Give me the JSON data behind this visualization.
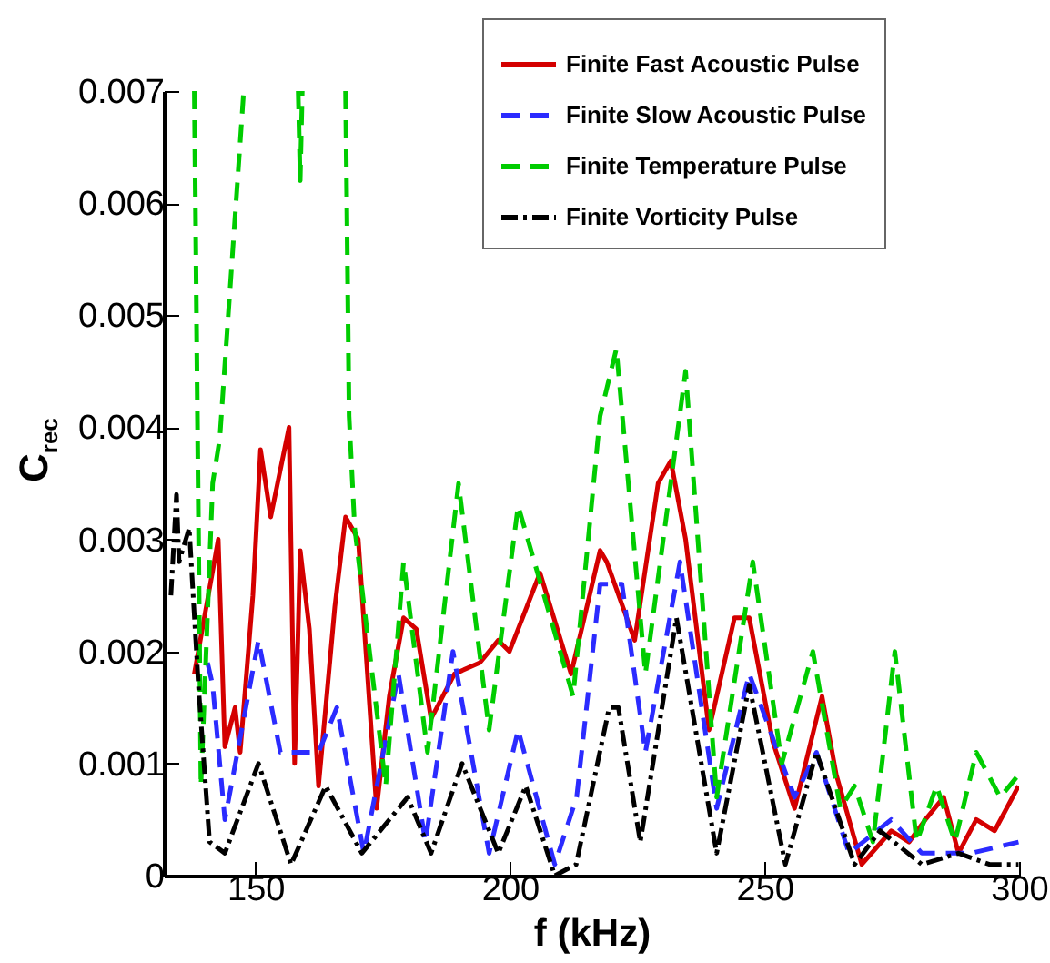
{
  "chart_data": {
    "type": "line",
    "xlabel": "f (kHz)",
    "ylabel": "C$_{rec}$",
    "xlim": [
      132,
      300
    ],
    "xticks": [
      150,
      200,
      250,
      300
    ],
    "ylim": [
      0,
      0.007
    ],
    "yticks": [
      0,
      0.001,
      0.002,
      0.003,
      0.004,
      0.005,
      0.006,
      0.007
    ],
    "grid": false,
    "legend": "top right",
    "series": [
      {
        "name": "Finite Fast Acoustic Pulse",
        "color": "#d40000",
        "line_style": "solid",
        "x": [
          138,
          142.7,
          144,
          146,
          147,
          149.5,
          151,
          153,
          156.6,
          157.7,
          158.8,
          160.6,
          162.4,
          165.6,
          167.7,
          170.2,
          173.8,
          176.3,
          179.1,
          181.6,
          184.5,
          189.1,
          194.1,
          197.7,
          199.9,
          205.9,
          212,
          217.7,
          219,
          224.5,
          229.1,
          231.6,
          234.5,
          239.1,
          244.1,
          247,
          251.6,
          255.9,
          261.3,
          264.1,
          269.1,
          274.9,
          278.4,
          281.6,
          285.2,
          288.1,
          291.6,
          295.2,
          299.9
        ],
        "values": [
          0.0018,
          0.003,
          0.00115,
          0.0015,
          0.0011,
          0.0025,
          0.0038,
          0.0032,
          0.004,
          0.001,
          0.0029,
          0.0022,
          0.0008,
          0.0024,
          0.0032,
          0.003,
          0.0006,
          0.0016,
          0.0023,
          0.0022,
          0.0014,
          0.0018,
          0.0019,
          0.0021,
          0.002,
          0.0027,
          0.0018,
          0.0029,
          0.0028,
          0.0021,
          0.0035,
          0.0037,
          0.003,
          0.0013,
          0.0023,
          0.0023,
          0.0012,
          0.0006,
          0.0016,
          0.0009,
          0.0001,
          0.0004,
          0.0003,
          0.0005,
          0.0007,
          0.0002,
          0.0005,
          0.0004,
          0.0008
        ]
      },
      {
        "name": "Finite Slow Acoustic Pulse",
        "color": "#2b2bff",
        "line_style": "dashed",
        "x": [
          140.6,
          141.6,
          144,
          150.6,
          154.9,
          162.4,
          166,
          171.3,
          178.1,
          183.4,
          188.8,
          195.9,
          201.6,
          208.8,
          213.1,
          217.7,
          222,
          226.6,
          233.4,
          240.6,
          247,
          255.9,
          260.2,
          266.6,
          274.9,
          280.9,
          290.6,
          299.9
        ],
        "values": [
          0.0019,
          0.0017,
          0.0005,
          0.0021,
          0.0011,
          0.0011,
          0.0015,
          0.0002,
          0.0018,
          0.0003,
          0.002,
          0.0002,
          0.0013,
          0.0001,
          0.0007,
          0.0026,
          0.0026,
          0.0011,
          0.0028,
          0.0006,
          0.0018,
          0.0007,
          0.0011,
          0.0002,
          0.0005,
          0.0002,
          0.0002,
          0.0003
        ]
      },
      {
        "name": "Finite Temperature Pulse",
        "color": "#00cc00",
        "line_style": "dashed",
        "x": [
          138,
          139.3,
          141.6,
          143,
          147.7,
          150,
          158.4,
          158.8,
          159.2,
          162,
          167.7,
          168.4,
          169.5,
          175.6,
          179.1,
          183.8,
          189.9,
          195.9,
          201.6,
          212.4,
          217.7,
          220.9,
          226.6,
          234.5,
          240.6,
          247.7,
          253.4,
          259.5,
          264.9,
          267.7,
          271.3,
          275.6,
          279.9,
          283.8,
          287.4,
          291.6,
          296.3,
          299.9
        ],
        "values": [
          0.007,
          0.0008,
          0.0035,
          0.0039,
          0.007,
          null,
          0.007,
          0.0062,
          0.007,
          null,
          0.007,
          0.0041,
          0.0031,
          0.0008,
          0.0028,
          0.0011,
          0.0035,
          0.0013,
          0.0033,
          0.0016,
          0.0041,
          0.0047,
          0.0018,
          0.0045,
          0.0007,
          0.0028,
          0.001,
          0.002,
          0.0006,
          0.0008,
          0.0003,
          0.002,
          0.0003,
          0.0008,
          0.0003,
          0.0011,
          0.0007,
          0.0009
        ]
      },
      {
        "name": "Finite Vorticity Pulse",
        "color": "#000000",
        "line_style": "dashdot",
        "x": [
          133.4,
          134.5,
          135,
          137,
          138.8,
          141,
          144,
          150.6,
          157,
          163.8,
          170.9,
          179.9,
          184.5,
          190.6,
          197.7,
          203.1,
          208.8,
          213,
          219.5,
          221.3,
          225.6,
          232.7,
          240.6,
          247,
          254.1,
          260.2,
          267.7,
          272.7,
          280.9,
          288.1,
          294.2,
          299.9
        ],
        "values": [
          0.0025,
          0.0034,
          0.0028,
          0.0031,
          0.0017,
          0.0003,
          0.0002,
          0.001,
          0.0001,
          0.0008,
          0.0002,
          0.0007,
          0.0002,
          0.001,
          0.0002,
          0.0008,
          0.0,
          0.0001,
          0.0015,
          0.0015,
          0.0003,
          0.0023,
          0.0002,
          0.0017,
          0.0001,
          0.0011,
          0.0001,
          0.0004,
          0.0001,
          0.0002,
          0.0001,
          0.0001
        ]
      }
    ]
  }
}
